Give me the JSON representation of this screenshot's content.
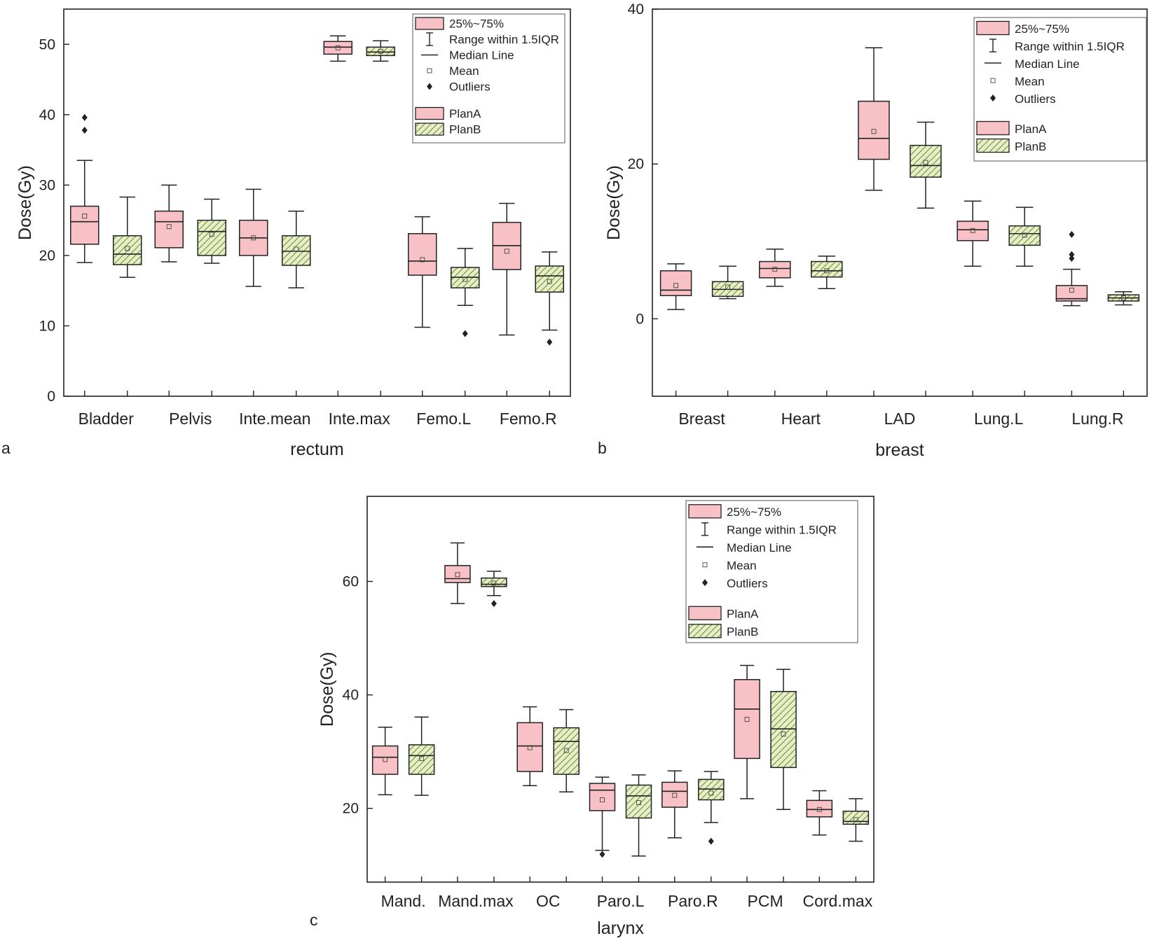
{
  "chart_data": [
    {
      "type": "box",
      "panel_label": "a",
      "xlabel": "rectum",
      "ylabel": "Dose(Gy)",
      "ylim": [
        0,
        55
      ],
      "yticks": [
        0,
        10,
        20,
        30,
        40,
        50
      ],
      "categories": [
        "Bladder",
        "Pelvis",
        "Inte.mean",
        "Inte.max",
        "Femo.L",
        "Femo.R"
      ],
      "series": [
        {
          "name": "PlanA",
          "boxes": [
            {
              "whislo": 19.0,
              "q1": 21.6,
              "med": 24.8,
              "q3": 27.0,
              "whishi": 33.5,
              "mean": 25.6,
              "outliers": [
                37.8,
                39.6
              ]
            },
            {
              "whislo": 19.1,
              "q1": 21.1,
              "med": 24.8,
              "q3": 26.3,
              "whishi": 30.0,
              "mean": 24.1,
              "outliers": []
            },
            {
              "whislo": 15.6,
              "q1": 20.0,
              "med": 22.5,
              "q3": 25.0,
              "whishi": 29.4,
              "mean": 22.5,
              "outliers": []
            },
            {
              "whislo": 47.6,
              "q1": 48.6,
              "med": 49.6,
              "q3": 50.4,
              "whishi": 51.2,
              "mean": 49.5,
              "outliers": []
            },
            {
              "whislo": 9.8,
              "q1": 17.2,
              "med": 19.2,
              "q3": 23.1,
              "whishi": 25.5,
              "mean": 19.4,
              "outliers": []
            },
            {
              "whislo": 8.7,
              "q1": 18.0,
              "med": 21.4,
              "q3": 24.7,
              "whishi": 27.4,
              "mean": 20.6,
              "outliers": []
            }
          ]
        },
        {
          "name": "PlanB",
          "boxes": [
            {
              "whislo": 16.9,
              "q1": 18.7,
              "med": 20.2,
              "q3": 22.8,
              "whishi": 28.3,
              "mean": 21.0,
              "outliers": []
            },
            {
              "whislo": 18.9,
              "q1": 20.0,
              "med": 23.4,
              "q3": 25.0,
              "whishi": 28.0,
              "mean": 23.0,
              "outliers": []
            },
            {
              "whislo": 15.4,
              "q1": 18.6,
              "med": 20.6,
              "q3": 22.8,
              "whishi": 26.3,
              "mean": 20.9,
              "outliers": []
            },
            {
              "whislo": 47.6,
              "q1": 48.4,
              "med": 48.9,
              "q3": 49.6,
              "whishi": 50.5,
              "mean": 49.0,
              "outliers": []
            },
            {
              "whislo": 12.9,
              "q1": 15.4,
              "med": 16.9,
              "q3": 18.3,
              "whishi": 21.0,
              "mean": 16.6,
              "outliers": [
                8.9
              ]
            },
            {
              "whislo": 9.4,
              "q1": 14.8,
              "med": 17.1,
              "q3": 18.5,
              "whishi": 20.5,
              "mean": 16.3,
              "outliers": [
                7.7
              ]
            }
          ]
        }
      ],
      "legend": {
        "stats": [
          "25%~75%",
          "Range within 1.5IQR",
          "Median Line",
          "Mean",
          "Outliers"
        ],
        "series": [
          "PlanA",
          "PlanB"
        ]
      }
    },
    {
      "type": "box",
      "panel_label": "b",
      "xlabel": "breast",
      "ylabel": "Dose(Gy)",
      "ylim": [
        -10,
        40
      ],
      "yticks": [
        0,
        20,
        40
      ],
      "categories": [
        "Breast",
        "Heart",
        "LAD",
        "Lung.L",
        "Lung.R"
      ],
      "series": [
        {
          "name": "PlanA",
          "boxes": [
            {
              "whislo": 1.2,
              "q1": 3.0,
              "med": 3.7,
              "q3": 6.2,
              "whishi": 7.1,
              "mean": 4.3,
              "outliers": []
            },
            {
              "whislo": 4.2,
              "q1": 5.3,
              "med": 6.5,
              "q3": 7.4,
              "whishi": 9.0,
              "mean": 6.4,
              "outliers": []
            },
            {
              "whislo": 16.6,
              "q1": 20.6,
              "med": 23.3,
              "q3": 28.1,
              "whishi": 35.0,
              "mean": 24.2,
              "outliers": []
            },
            {
              "whislo": 6.8,
              "q1": 10.1,
              "med": 11.5,
              "q3": 12.6,
              "whishi": 15.2,
              "mean": 11.4,
              "outliers": []
            },
            {
              "whislo": 1.7,
              "q1": 2.3,
              "med": 2.6,
              "q3": 4.3,
              "whishi": 6.4,
              "mean": 3.7,
              "outliers": [
                7.8,
                8.3,
                10.9
              ]
            }
          ]
        },
        {
          "name": "PlanB",
          "boxes": [
            {
              "whislo": 2.6,
              "q1": 2.9,
              "med": 3.8,
              "q3": 4.8,
              "whishi": 6.8,
              "mean": 4.1,
              "outliers": []
            },
            {
              "whislo": 3.9,
              "q1": 5.4,
              "med": 6.2,
              "q3": 7.4,
              "whishi": 8.1,
              "mean": 6.2,
              "outliers": []
            },
            {
              "whislo": 14.3,
              "q1": 18.3,
              "med": 19.8,
              "q3": 22.4,
              "whishi": 25.4,
              "mean": 20.2,
              "outliers": []
            },
            {
              "whislo": 6.8,
              "q1": 9.5,
              "med": 11.0,
              "q3": 12.0,
              "whishi": 14.4,
              "mean": 10.8,
              "outliers": []
            },
            {
              "whislo": 1.8,
              "q1": 2.3,
              "med": 2.7,
              "q3": 3.1,
              "whishi": 3.5,
              "mean": 2.7,
              "outliers": []
            }
          ]
        }
      ],
      "legend": {
        "stats": [
          "25%~75%",
          "Range within 1.5IQR",
          "Median Line",
          "Mean",
          "Outliers"
        ],
        "series": [
          "PlanA",
          "PlanB"
        ]
      }
    },
    {
      "type": "box",
      "panel_label": "c",
      "xlabel": "larynx",
      "ylabel": "Dose(Gy)",
      "ylim": [
        7,
        75
      ],
      "yticks": [
        20,
        40,
        60
      ],
      "categories": [
        "Mand.",
        "Mand.max",
        "OC",
        "Paro.L",
        "Paro.R",
        "PCM",
        "Cord.max"
      ],
      "series": [
        {
          "name": "PlanA",
          "boxes": [
            {
              "whislo": 22.4,
              "q1": 26.0,
              "med": 29.0,
              "q3": 31.0,
              "whishi": 34.3,
              "mean": 28.6,
              "outliers": []
            },
            {
              "whislo": 56.1,
              "q1": 59.8,
              "med": 60.5,
              "q3": 62.8,
              "whishi": 66.8,
              "mean": 61.2,
              "outliers": []
            },
            {
              "whislo": 24.0,
              "q1": 26.5,
              "med": 31.0,
              "q3": 35.1,
              "whishi": 37.9,
              "mean": 30.7,
              "outliers": []
            },
            {
              "whislo": 12.6,
              "q1": 19.6,
              "med": 23.2,
              "q3": 24.4,
              "whishi": 25.5,
              "mean": 21.5,
              "outliers": [
                11.9
              ]
            },
            {
              "whislo": 14.8,
              "q1": 20.2,
              "med": 23.0,
              "q3": 24.6,
              "whishi": 26.6,
              "mean": 22.3,
              "outliers": []
            },
            {
              "whislo": 21.7,
              "q1": 28.8,
              "med": 37.5,
              "q3": 42.7,
              "whishi": 45.2,
              "mean": 35.7,
              "outliers": []
            },
            {
              "whislo": 15.3,
              "q1": 18.5,
              "med": 19.8,
              "q3": 21.4,
              "whishi": 23.1,
              "mean": 19.8,
              "outliers": []
            }
          ]
        },
        {
          "name": "PlanB",
          "boxes": [
            {
              "whislo": 22.3,
              "q1": 26.0,
              "med": 29.3,
              "q3": 31.2,
              "whishi": 36.1,
              "mean": 28.8,
              "outliers": []
            },
            {
              "whislo": 57.5,
              "q1": 59.1,
              "med": 59.5,
              "q3": 60.6,
              "whishi": 61.8,
              "mean": 59.7,
              "outliers": [
                56.1
              ]
            },
            {
              "whislo": 22.9,
              "q1": 26.0,
              "med": 31.8,
              "q3": 34.2,
              "whishi": 37.4,
              "mean": 30.2,
              "outliers": []
            },
            {
              "whislo": 11.6,
              "q1": 18.3,
              "med": 22.2,
              "q3": 24.1,
              "whishi": 25.9,
              "mean": 21.0,
              "outliers": []
            },
            {
              "whislo": 17.5,
              "q1": 21.5,
              "med": 23.4,
              "q3": 25.1,
              "whishi": 26.5,
              "mean": 22.7,
              "outliers": [
                14.2
              ]
            },
            {
              "whislo": 19.8,
              "q1": 27.2,
              "med": 34.0,
              "q3": 40.6,
              "whishi": 44.5,
              "mean": 33.1,
              "outliers": []
            },
            {
              "whislo": 14.2,
              "q1": 17.2,
              "med": 17.7,
              "q3": 19.5,
              "whishi": 21.7,
              "mean": 18.0,
              "outliers": []
            }
          ]
        }
      ],
      "legend": {
        "stats": [
          "25%~75%",
          "Range within 1.5IQR",
          "Median Line",
          "Mean",
          "Outliers"
        ],
        "series": [
          "PlanA",
          "PlanB"
        ]
      }
    }
  ],
  "colors": {
    "planA_fill": "#f7c1c5",
    "planB_fill": "#e6efc6",
    "planB_hatch": "#6f8a3a",
    "stroke": "#222222"
  }
}
